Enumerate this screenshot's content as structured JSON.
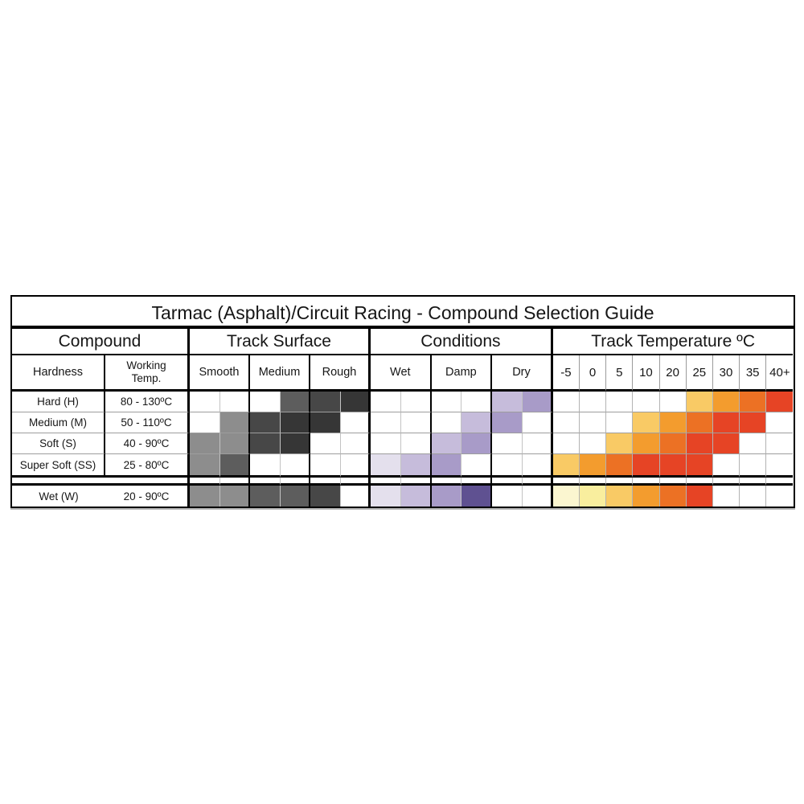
{
  "title": "Tarmac (Asphalt)/Circuit Racing - Compound Selection Guide",
  "header": {
    "groups": [
      {
        "label": "Compound"
      },
      {
        "label": "Track Surface"
      },
      {
        "label": "Conditions"
      },
      {
        "label": "Track Temperature ºC"
      }
    ],
    "sub": {
      "hardness": "Hardness",
      "working_temp": "Working\nTemp.",
      "surface": [
        "Smooth",
        "Medium",
        "Rough"
      ],
      "conditions": [
        "Wet",
        "Damp",
        "Dry"
      ],
      "ticks": [
        "-5",
        "0",
        "5",
        "10",
        "20",
        "25",
        "30",
        "35",
        "40+"
      ]
    }
  },
  "palette": {
    "w": "#ffffff",
    "g1": "#8d8d8d",
    "g2": "#5d5d5d",
    "g3": "#474747",
    "g4": "#363636",
    "p1": "#e4e0ed",
    "p2": "#c6bcdb",
    "p3": "#a89bc8",
    "p4": "#5f5191",
    "y1": "#fbf6d0",
    "y2": "#f9ee9e",
    "o1": "#f9ca65",
    "o2": "#f39c2e",
    "o3": "#ec7124",
    "o4": "#e64425"
  },
  "rows": [
    {
      "hardness": "Hard (H)",
      "working_temp": "80 - 130ºC",
      "surface": [
        "w",
        "w",
        "w",
        "g2",
        "g3",
        "g4"
      ],
      "conditions": [
        "w",
        "w",
        "w",
        "w",
        "p2",
        "p3"
      ],
      "temperature": [
        "w",
        "w",
        "w",
        "w",
        "w",
        "o1",
        "o2",
        "o3",
        "o4"
      ]
    },
    {
      "hardness": "Medium (M)",
      "working_temp": "50 - 110ºC",
      "surface": [
        "w",
        "g1",
        "g3",
        "g4",
        "g4",
        "w"
      ],
      "conditions": [
        "w",
        "w",
        "w",
        "p2",
        "p3",
        "w"
      ],
      "temperature": [
        "w",
        "w",
        "w",
        "o1",
        "o2",
        "o3",
        "o4",
        "o4",
        "w"
      ]
    },
    {
      "hardness": "Soft (S)",
      "working_temp": "40 - 90ºC",
      "surface": [
        "g1",
        "g1",
        "g3",
        "g4",
        "w",
        "w"
      ],
      "conditions": [
        "w",
        "w",
        "p2",
        "p3",
        "w",
        "w"
      ],
      "temperature": [
        "w",
        "w",
        "o1",
        "o2",
        "o3",
        "o4",
        "o4",
        "w",
        "w"
      ]
    },
    {
      "hardness": "Super Soft (SS)",
      "working_temp": "25 - 80ºC",
      "surface": [
        "g1",
        "g2",
        "w",
        "w",
        "w",
        "w"
      ],
      "conditions": [
        "p1",
        "p2",
        "p3",
        "w",
        "w",
        "w"
      ],
      "temperature": [
        "o1",
        "o2",
        "o3",
        "o4",
        "o4",
        "o4",
        "w",
        "w",
        "w"
      ]
    }
  ],
  "wet_row": {
    "hardness": "Wet (W)",
    "working_temp": "20 - 90ºC",
    "surface": [
      "g1",
      "g1",
      "g2",
      "g2",
      "g3",
      "w"
    ],
    "conditions": [
      "p1",
      "p2",
      "p3",
      "p4",
      "w",
      "w"
    ],
    "temperature": [
      "y1",
      "y2",
      "o1",
      "o2",
      "o3",
      "o4",
      "w",
      "w",
      "w"
    ]
  },
  "chart_data": {
    "type": "heatmap",
    "title": "Tarmac (Asphalt)/Circuit Racing - Compound Selection Guide",
    "row_labels": [
      "Hard (H)",
      "Medium (M)",
      "Soft (S)",
      "Super Soft (SS)",
      "Wet (W)"
    ],
    "working_temp_c": [
      "80 - 130",
      "50 - 110",
      "40 - 90",
      "25 - 80",
      "20 - 90"
    ],
    "column_groups": {
      "track_surface": [
        "Smooth",
        "Medium",
        "Rough"
      ],
      "conditions": [
        "Wet",
        "Damp",
        "Dry"
      ],
      "track_temperature_c": [
        "-5",
        "0",
        "5",
        "10",
        "20",
        "25",
        "30",
        "35",
        "40+"
      ]
    },
    "shade_scale_note": "0 = blank; gray scale 1-4 light to dark; purple scale 1-4 light to dark; temperature scale 1-6 pale yellow to red",
    "track_surface_halfcells": [
      "Smooth-L",
      "Smooth-R",
      "Medium-L",
      "Medium-R",
      "Rough-L",
      "Rough-R"
    ],
    "track_surface_shade": [
      [
        0,
        0,
        0,
        2,
        3,
        4
      ],
      [
        0,
        1,
        3,
        4,
        4,
        0
      ],
      [
        1,
        1,
        3,
        4,
        0,
        0
      ],
      [
        1,
        2,
        0,
        0,
        0,
        0
      ],
      [
        1,
        1,
        2,
        2,
        3,
        0
      ]
    ],
    "conditions_halfcells": [
      "Wet-L",
      "Wet-R",
      "Damp-L",
      "Damp-R",
      "Dry-L",
      "Dry-R"
    ],
    "conditions_shade": [
      [
        0,
        0,
        0,
        0,
        2,
        3
      ],
      [
        0,
        0,
        0,
        2,
        3,
        0
      ],
      [
        0,
        0,
        2,
        3,
        0,
        0
      ],
      [
        1,
        2,
        3,
        0,
        0,
        0
      ],
      [
        1,
        2,
        3,
        4,
        0,
        0
      ]
    ],
    "temperature_shade": [
      [
        0,
        0,
        0,
        0,
        0,
        3,
        4,
        5,
        6
      ],
      [
        0,
        0,
        0,
        3,
        4,
        5,
        6,
        6,
        0
      ],
      [
        0,
        0,
        3,
        4,
        5,
        6,
        6,
        0,
        0
      ],
      [
        3,
        4,
        5,
        6,
        6,
        6,
        0,
        0,
        0
      ],
      [
        1,
        2,
        3,
        4,
        5,
        6,
        0,
        0,
        0
      ]
    ]
  }
}
